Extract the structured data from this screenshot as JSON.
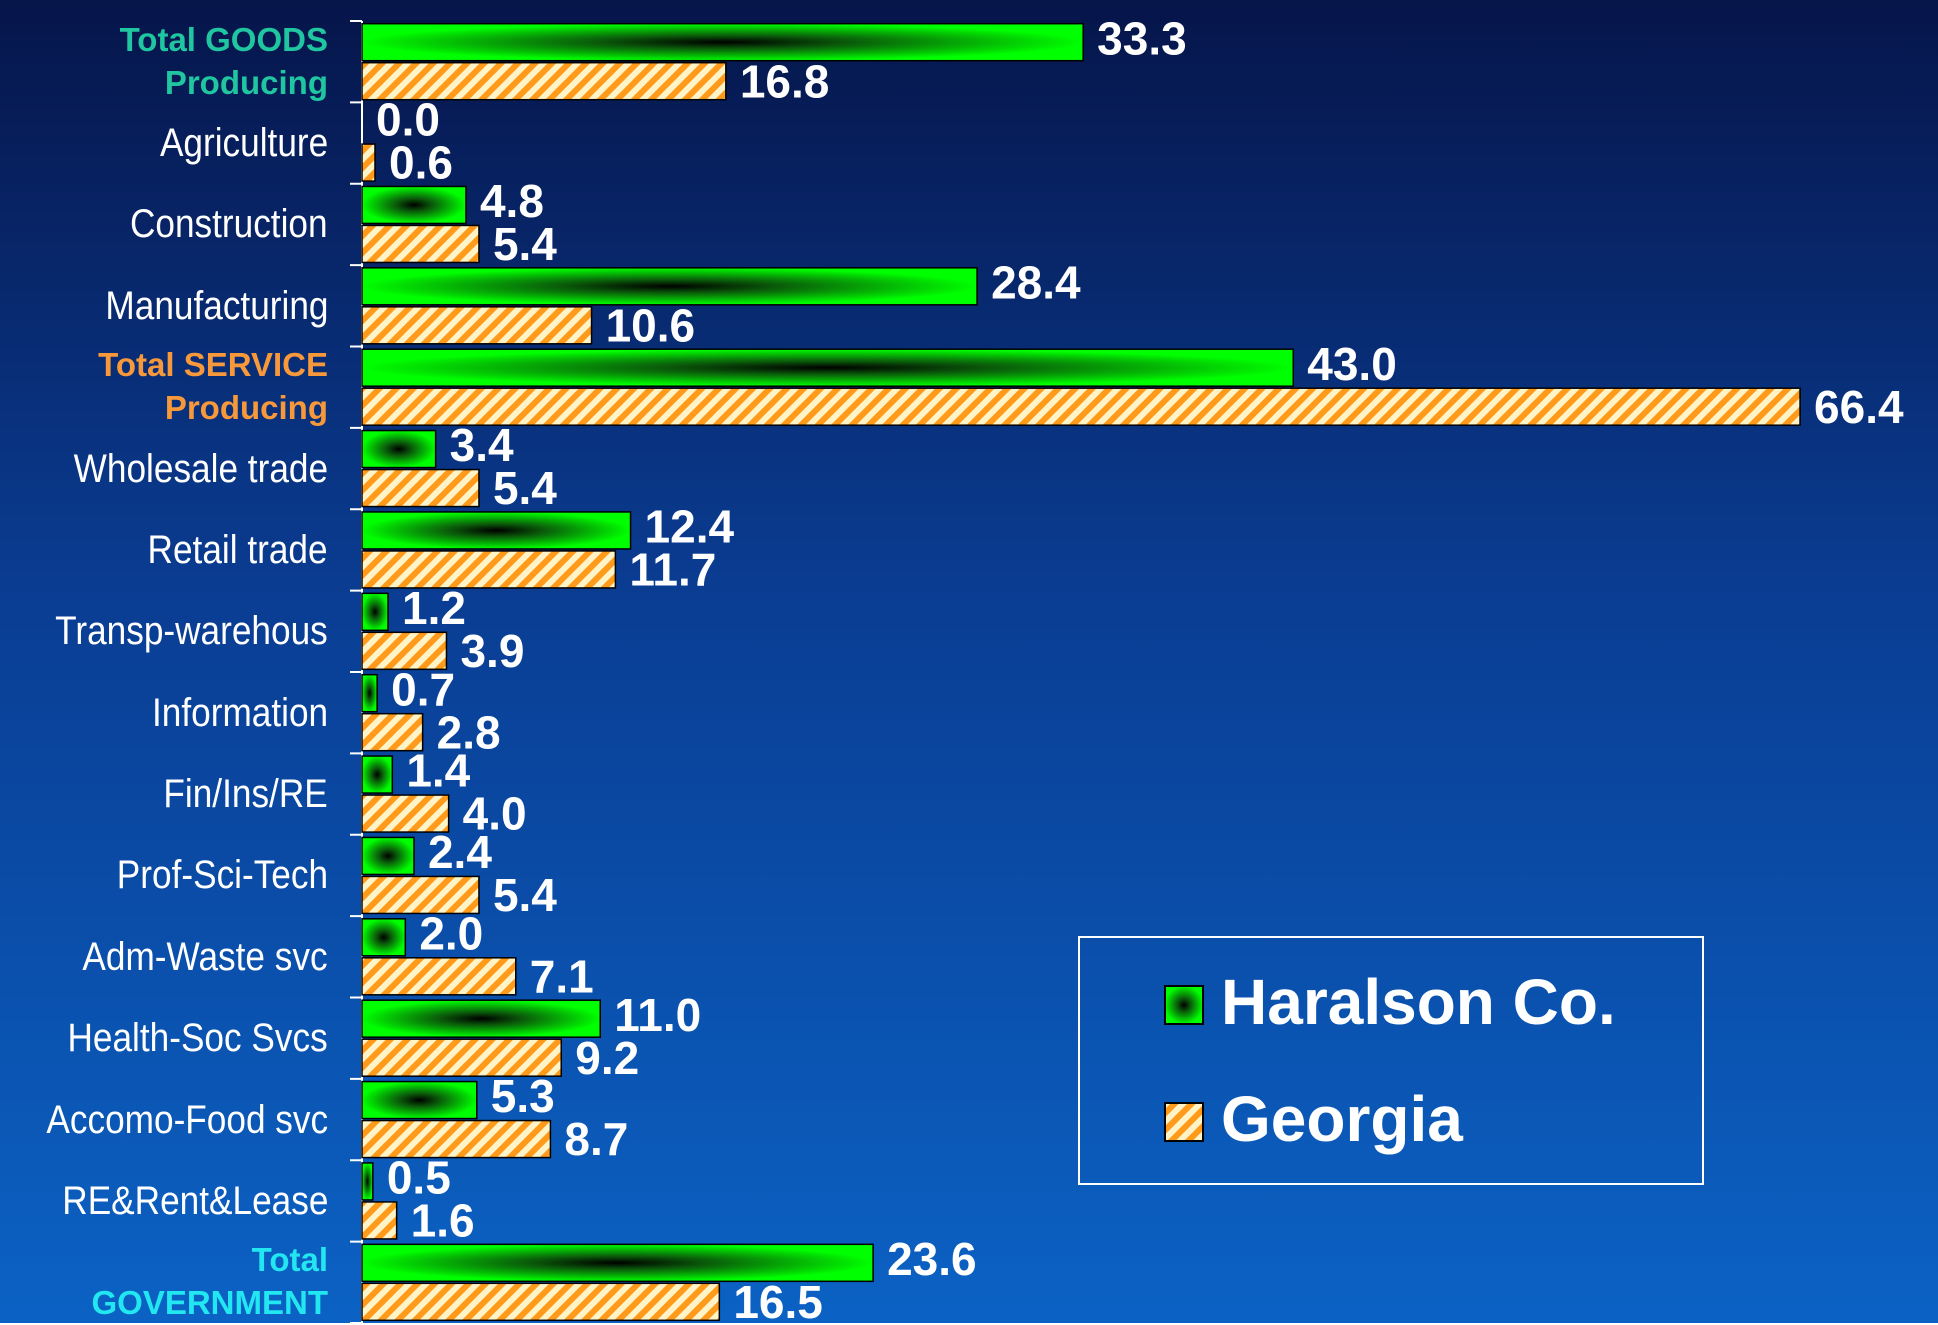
{
  "chart_data": {
    "type": "hbar",
    "categories": [
      "Total GOODS Producing",
      "Agriculture",
      "Construction",
      "Manufacturing",
      "Total SERVICE Producing",
      "Wholesale trade",
      "Retail trade",
      "Transp-warehous",
      "Information",
      "Fin/Ins/RE",
      "Prof-Sci-Tech",
      "Adm-Waste svc",
      "Health-Soc Svcs",
      "Accomo-Food svc",
      "RE&Rent&Lease",
      "Total GOVERNMENT"
    ],
    "category_colors": [
      "#1fc6a0",
      "#ffffff",
      "#ffffff",
      "#ffffff",
      "#f7993a",
      "#ffffff",
      "#ffffff",
      "#ffffff",
      "#ffffff",
      "#ffffff",
      "#ffffff",
      "#ffffff",
      "#ffffff",
      "#ffffff",
      "#ffffff",
      "#22e6f0"
    ],
    "series": [
      {
        "name": "Haralson Co.",
        "color": "#00ff00",
        "values": [
          33.3,
          0.0,
          4.8,
          28.4,
          43.0,
          3.4,
          12.4,
          1.2,
          0.7,
          1.4,
          2.4,
          2.0,
          11.0,
          5.3,
          0.5,
          23.6
        ],
        "value_labels": [
          "33.3",
          "0.0",
          "4.8",
          "28.4",
          "43.0",
          "3.4",
          "12.4",
          "1.2",
          "0.7",
          "1.4",
          "2.4",
          "2.0",
          "11.0",
          "5.3",
          "0.5",
          "23.6"
        ]
      },
      {
        "name": "Georgia",
        "color": "#ff9a1a",
        "values": [
          16.8,
          0.6,
          5.4,
          10.6,
          66.4,
          5.4,
          11.7,
          3.9,
          2.8,
          4.0,
          5.4,
          7.1,
          9.2,
          8.7,
          1.6,
          16.5
        ],
        "value_labels": [
          "16.8",
          "0.6",
          "5.4",
          "10.6",
          "66.4",
          "5.4",
          "11.7",
          "3.9",
          "2.8",
          "4.0",
          "5.4",
          "7.1",
          "9.2",
          "8.7",
          "1.6",
          "16.5"
        ]
      }
    ],
    "xlim": [
      0,
      70
    ],
    "legend": "lower right"
  }
}
